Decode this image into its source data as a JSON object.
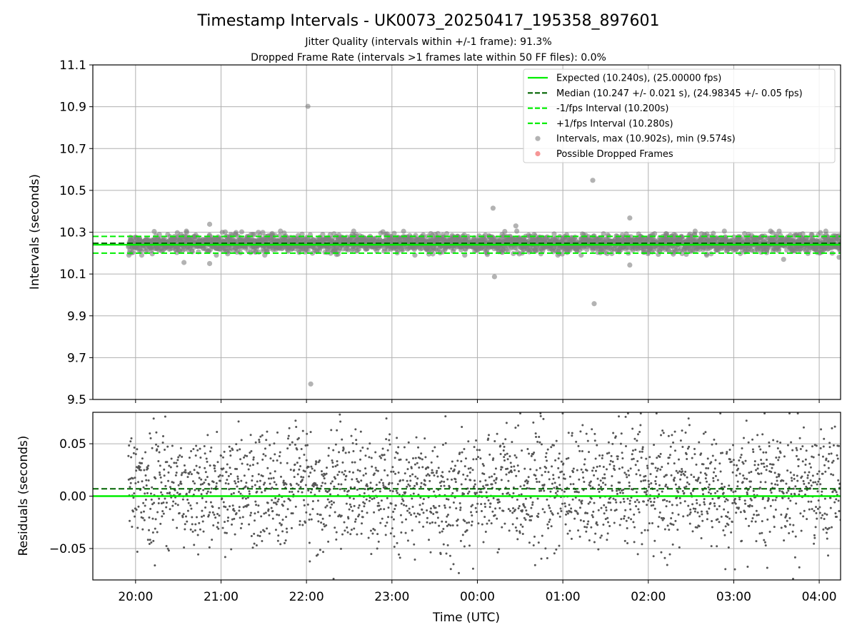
{
  "chart_data": [
    {
      "type": "scatter",
      "title": "Timestamp Intervals - UK0073_20250417_195358_897601",
      "subtitle_lines": [
        "Jitter Quality (intervals within +/-1 frame): 91.3%",
        "Dropped Frame Rate (intervals >1 frames late within 50 FF files): 0.0%"
      ],
      "ylabel": "Intervals (seconds)",
      "ylim": [
        9.5,
        11.1
      ],
      "yticks": [
        9.5,
        9.7,
        9.9,
        10.1,
        10.3,
        10.5,
        10.7,
        10.9,
        11.1
      ],
      "ytick_labels": [
        "9.5",
        "9.7",
        "9.9",
        "10.1",
        "10.3",
        "10.5",
        "10.7",
        "10.9",
        "11.1"
      ],
      "x_range_hours": [
        "19:30",
        "04:15"
      ],
      "grid": true,
      "legend_position": "top-right",
      "lines": [
        {
          "name": "Expected (10.240s), (25.00000 fps)",
          "y": 10.24,
          "style": "solid",
          "color": "#00ee00"
        },
        {
          "name": "Median (10.247 +/- 0.021 s), (24.98345 +/- 0.05 fps)",
          "y": 10.247,
          "style": "dashed",
          "color": "#006400"
        },
        {
          "name": "-1/fps Interval (10.200s)",
          "y": 10.2,
          "style": "dashed",
          "color": "#00ee00"
        },
        {
          "name": "+1/fps Interval (10.280s)",
          "y": 10.28,
          "style": "dashed",
          "color": "#00ee00"
        }
      ],
      "series": [
        {
          "name": "Intervals, max (10.902s), min (9.574s)",
          "color": "#808080",
          "kind": "scatter",
          "distribution": {
            "start": "19:55",
            "end": "04:15",
            "count": 2900,
            "center": 10.247,
            "spread": 0.021
          },
          "notable_points": [
            {
              "x": "22:01",
              "y": 10.902
            },
            {
              "x": "22:03",
              "y": 9.574
            },
            {
              "x": "01:21",
              "y": 10.548
            },
            {
              "x": "01:22",
              "y": 9.958
            },
            {
              "x": "00:11",
              "y": 10.415
            },
            {
              "x": "00:12",
              "y": 10.087
            },
            {
              "x": "01:47",
              "y": 10.368
            },
            {
              "x": "01:47",
              "y": 10.143
            },
            {
              "x": "00:27",
              "y": 10.33
            },
            {
              "x": "20:34",
              "y": 10.155
            },
            {
              "x": "20:52",
              "y": 10.15
            },
            {
              "x": "20:52",
              "y": 10.338
            },
            {
              "x": "03:35",
              "y": 10.17
            },
            {
              "x": "04:14",
              "y": 10.18
            }
          ]
        },
        {
          "name": "Possible Dropped Frames",
          "color": "#f05050",
          "kind": "scatter",
          "points": []
        }
      ]
    },
    {
      "type": "scatter",
      "ylabel": "Residuals (seconds)",
      "xlabel": "Time (UTC)",
      "ylim": [
        -0.08,
        0.08
      ],
      "yticks": [
        -0.05,
        0.0,
        0.05
      ],
      "ytick_labels": [
        "−0.05",
        "0.00",
        "0.05"
      ],
      "xticks": [
        "20:00",
        "21:00",
        "22:00",
        "23:00",
        "00:00",
        "01:00",
        "02:00",
        "03:00",
        "04:00"
      ],
      "x_range_hours": [
        "19:30",
        "04:15"
      ],
      "grid": true,
      "lines": [
        {
          "y": 0.0,
          "style": "solid",
          "color": "#00ee00"
        },
        {
          "y": 0.007,
          "style": "dashed",
          "color": "#006400"
        }
      ],
      "series": [
        {
          "color": "#555555",
          "kind": "scatter",
          "distribution": {
            "start": "19:55",
            "end": "04:15",
            "count": 2400,
            "center": 0.007,
            "spread": 0.028
          }
        }
      ]
    }
  ]
}
